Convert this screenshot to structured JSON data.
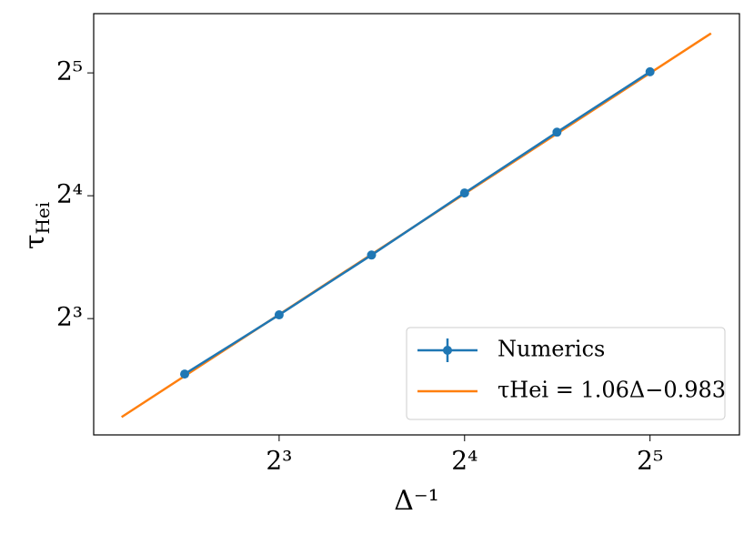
{
  "chart_data": {
    "type": "line",
    "xlabel": "Δ⁻¹",
    "ylabel": {
      "symbol": "τ",
      "subscript": "Hei"
    },
    "log_scale": {
      "x": 2,
      "y": 2
    },
    "xlim": [
      4,
      44.7
    ],
    "ylim": [
      4.15,
      44.7
    ],
    "xticks": [
      {
        "value": 8,
        "label": "2³"
      },
      {
        "value": 16,
        "label": "2⁴"
      },
      {
        "value": 32,
        "label": "2⁵"
      }
    ],
    "yticks": [
      {
        "value": 8,
        "label": "2³"
      },
      {
        "value": 16,
        "label": "2⁴"
      },
      {
        "value": 32,
        "label": "2⁵"
      }
    ],
    "legend": "lower right",
    "series": [
      {
        "name": "Numerics",
        "color": "#1f77b4",
        "markers": true,
        "x": [
          5.62,
          8,
          11.3,
          16,
          22.6,
          32
        ],
        "values": [
          5.85,
          8.17,
          11.45,
          16.25,
          22.9,
          32.2
        ]
      },
      {
        "name": "τHei = 1.06Δ−0.983",
        "color": "#ff7f0e",
        "markers": false,
        "x": [
          4.44,
          40.2
        ],
        "values": [
          4.59,
          40.0
        ]
      }
    ]
  }
}
